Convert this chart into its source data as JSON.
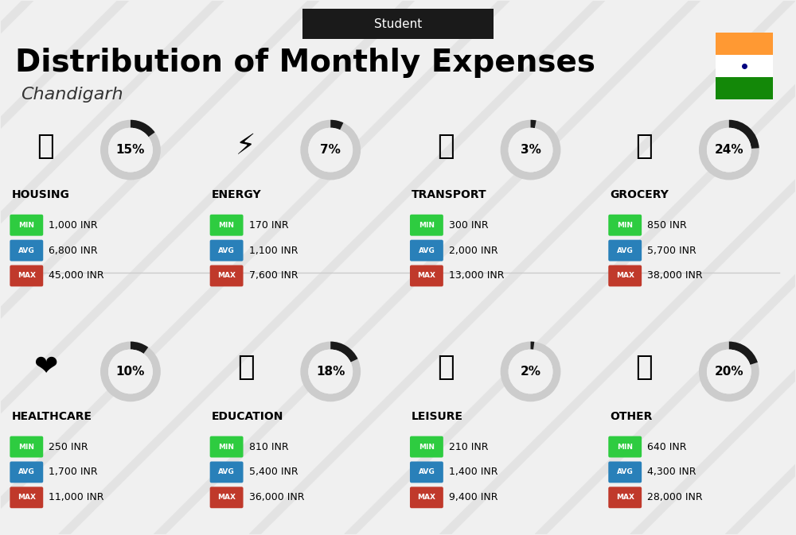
{
  "title": "Distribution of Monthly Expenses",
  "subtitle": "Student",
  "location": "Chandigarh",
  "bg_color": "#f0f0f0",
  "header_bg": "#1a1a1a",
  "categories": [
    {
      "name": "HOUSING",
      "pct": 15,
      "min": "1,000 INR",
      "avg": "6,800 INR",
      "max": "45,000 INR",
      "emoji": "🏢",
      "col": 0,
      "row": 0
    },
    {
      "name": "ENERGY",
      "pct": 7,
      "min": "170 INR",
      "avg": "1,100 INR",
      "max": "7,600 INR",
      "emoji": "⚡",
      "col": 1,
      "row": 0
    },
    {
      "name": "TRANSPORT",
      "pct": 3,
      "min": "300 INR",
      "avg": "2,000 INR",
      "max": "13,000 INR",
      "emoji": "🚌",
      "col": 2,
      "row": 0
    },
    {
      "name": "GROCERY",
      "pct": 24,
      "min": "850 INR",
      "avg": "5,700 INR",
      "max": "38,000 INR",
      "emoji": "🛍",
      "col": 3,
      "row": 0
    },
    {
      "name": "HEALTHCARE",
      "pct": 10,
      "min": "250 INR",
      "avg": "1,700 INR",
      "max": "11,000 INR",
      "emoji": "❤",
      "col": 0,
      "row": 1
    },
    {
      "name": "EDUCATION",
      "pct": 18,
      "min": "810 INR",
      "avg": "5,400 INR",
      "max": "36,000 INR",
      "emoji": "🎓",
      "col": 1,
      "row": 1
    },
    {
      "name": "LEISURE",
      "pct": 2,
      "min": "210 INR",
      "avg": "1,400 INR",
      "max": "9,400 INR",
      "emoji": "🛍",
      "col": 2,
      "row": 1
    },
    {
      "name": "OTHER",
      "pct": 20,
      "min": "640 INR",
      "avg": "4,300 INR",
      "max": "28,000 INR",
      "emoji": "👜",
      "col": 3,
      "row": 1
    }
  ],
  "color_min": "#2ecc40",
  "color_avg": "#2980b9",
  "color_max": "#c0392b",
  "color_label": "#ffffff",
  "india_saffron": "#FF9933",
  "india_green": "#138808",
  "india_white": "#FFFFFF",
  "donut_bg": "#cccccc",
  "donut_fg": "#222222"
}
